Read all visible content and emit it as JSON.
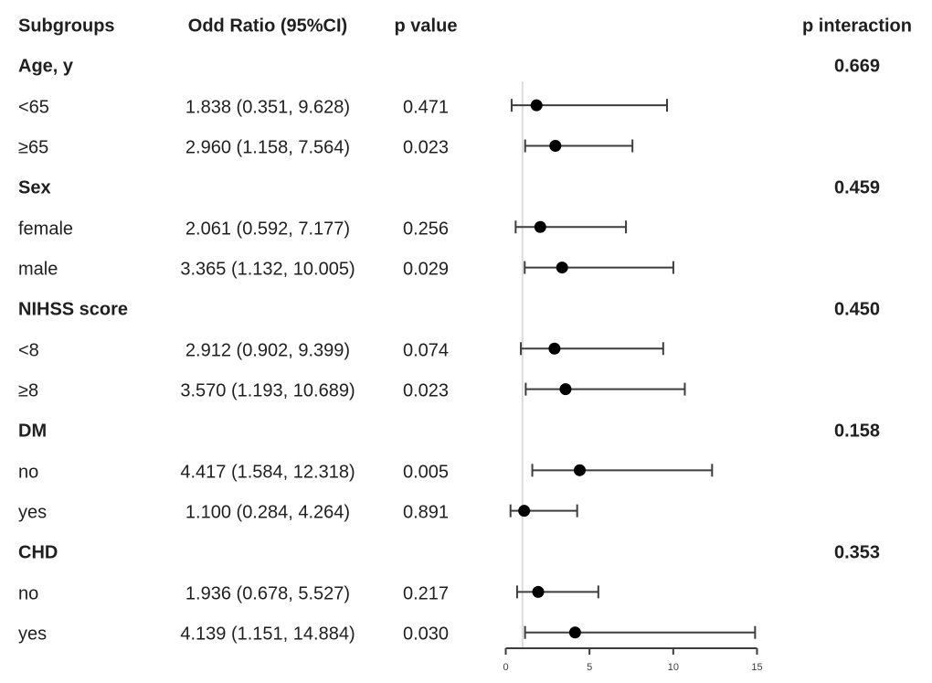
{
  "chart_data": {
    "type": "scatter",
    "variant": "forest-plot",
    "title": "",
    "xlabel": "",
    "ylabel": "",
    "xlim": [
      0,
      15
    ],
    "x_ticks": [
      0,
      5,
      10,
      15
    ],
    "reference_line_x": 1,
    "grid": false,
    "legend": "none",
    "columns": {
      "subgroups": "Subgroups",
      "odd_ratio": "Odd Ratio (95%CI)",
      "p_value": "p value",
      "p_interaction": "p interaction"
    },
    "rows": [
      {
        "kind": "header",
        "subgroup": "Subgroups",
        "or_ci": "Odd Ratio (95%CI)",
        "p_value": "p value",
        "p_interaction": "p interaction"
      },
      {
        "kind": "group",
        "subgroup": "Age, y",
        "p_interaction": "0.669"
      },
      {
        "kind": "item",
        "subgroup": "<65",
        "or_ci": "1.838 (0.351, 9.628)",
        "p_value": "0.471",
        "or": 1.838,
        "ci_low": 0.351,
        "ci_high": 9.628
      },
      {
        "kind": "item",
        "subgroup": "≥65",
        "or_ci": "2.960 (1.158, 7.564)",
        "p_value": "0.023",
        "or": 2.96,
        "ci_low": 1.158,
        "ci_high": 7.564
      },
      {
        "kind": "group",
        "subgroup": "Sex",
        "p_interaction": "0.459"
      },
      {
        "kind": "item",
        "subgroup": "female",
        "or_ci": "2.061 (0.592, 7.177)",
        "p_value": "0.256",
        "or": 2.061,
        "ci_low": 0.592,
        "ci_high": 7.177
      },
      {
        "kind": "item",
        "subgroup": "male",
        "or_ci": "3.365 (1.132, 10.005)",
        "p_value": "0.029",
        "or": 3.365,
        "ci_low": 1.132,
        "ci_high": 10.005
      },
      {
        "kind": "group",
        "subgroup": "NIHSS score",
        "p_interaction": "0.450"
      },
      {
        "kind": "item",
        "subgroup": "<8",
        "or_ci": "2.912 (0.902, 9.399)",
        "p_value": "0.074",
        "or": 2.912,
        "ci_low": 0.902,
        "ci_high": 9.399
      },
      {
        "kind": "item",
        "subgroup": "≥8",
        "or_ci": "3.570 (1.193, 10.689)",
        "p_value": "0.023",
        "or": 3.57,
        "ci_low": 1.193,
        "ci_high": 10.689
      },
      {
        "kind": "group",
        "subgroup": "DM",
        "p_interaction": "0.158"
      },
      {
        "kind": "item",
        "subgroup": "no",
        "or_ci": "4.417 (1.584, 12.318)",
        "p_value": "0.005",
        "or": 4.417,
        "ci_low": 1.584,
        "ci_high": 12.318
      },
      {
        "kind": "item",
        "subgroup": "yes",
        "or_ci": "1.100 (0.284, 4.264)",
        "p_value": "0.891",
        "or": 1.1,
        "ci_low": 0.284,
        "ci_high": 4.264
      },
      {
        "kind": "group",
        "subgroup": "CHD",
        "p_interaction": "0.353"
      },
      {
        "kind": "item",
        "subgroup": "no",
        "or_ci": "1.936 (0.678, 5.527)",
        "p_value": "0.217",
        "or": 1.936,
        "ci_low": 0.678,
        "ci_high": 5.527
      },
      {
        "kind": "item",
        "subgroup": "yes",
        "or_ci": "4.139 (1.151, 14.884)",
        "p_value": "0.030",
        "or": 4.139,
        "ci_low": 1.151,
        "ci_high": 14.884
      }
    ],
    "colors": {
      "point": "#000000",
      "ci_line": "#3d3d3d",
      "axis": "#3d3d3d",
      "reference_line": "#dcdcdc",
      "text": "#1f1f1f"
    }
  }
}
